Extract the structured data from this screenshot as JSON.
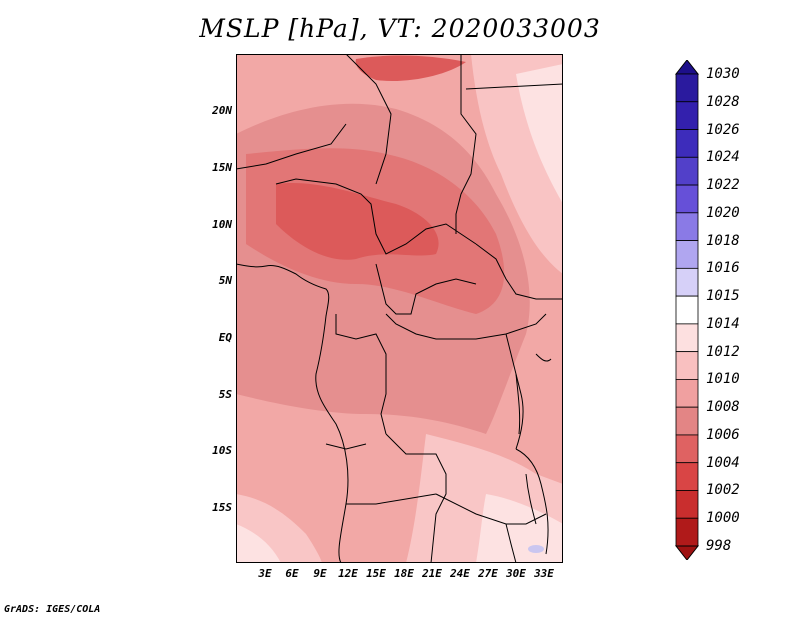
{
  "title": "MSLP [hPa], VT: 2020033003",
  "footer": "GrADS: IGES/COLA",
  "map": {
    "variable": "MSLP",
    "units": "hPa",
    "valid_time": "2020033003",
    "lat_labels": [
      "20N",
      "15N",
      "10N",
      "5N",
      "EQ",
      "5S",
      "10S",
      "15S"
    ],
    "lon_labels": [
      "3E",
      "6E",
      "9E",
      "12E",
      "15E",
      "18E",
      "21E",
      "24E",
      "27E",
      "30E",
      "33E"
    ]
  },
  "colorbar": {
    "labels": [
      "1030",
      "1028",
      "1026",
      "1024",
      "1022",
      "1020",
      "1018",
      "1016",
      "1015",
      "1014",
      "1012",
      "1010",
      "1008",
      "1006",
      "1004",
      "1002",
      "1000",
      "998"
    ],
    "colors": [
      "#1d0f8a",
      "#2a1a9e",
      "#3320ad",
      "#3d2cbb",
      "#5240c9",
      "#6650d8",
      "#8a7ae6",
      "#b0a6f0",
      "#d6d0f8",
      "#ffffff",
      "#fde0e0",
      "#f9c0c0",
      "#f0a0a0",
      "#e38585",
      "#df6262",
      "#d94545",
      "#c92e2e",
      "#b01a1a",
      "#9e1212"
    ]
  },
  "legend_colors": {
    "ocean_1010": "#f4a8a6",
    "land_1008": "#e89090",
    "low_1006": "#e57676",
    "low_1004": "#e05858",
    "high_1012": "#f9caca",
    "high_1014": "#fde3e3",
    "high_1016": "#c8c6f0"
  }
}
